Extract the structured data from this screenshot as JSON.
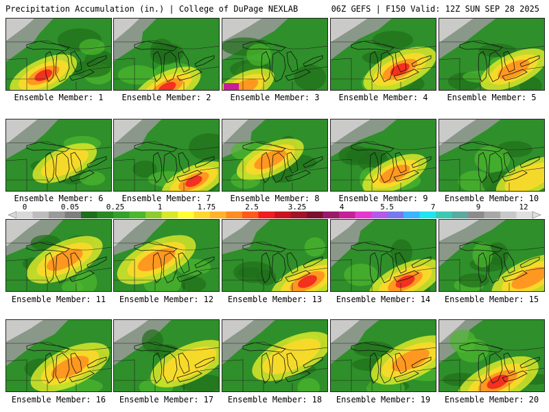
{
  "header": {
    "left": "Precipitation Accumulation (in.) | College of DuPage NEXLAB",
    "right": "06Z GEFS | F150 Valid: 12Z SUN SEP 28 2025"
  },
  "members": [
    {
      "label": "Ensemble Member: 1",
      "hot": [
        0.35,
        0.78,
        0.9
      ],
      "wet": 0.35
    },
    {
      "label": "Ensemble Member: 2",
      "hot": [
        0.5,
        0.95,
        1.0
      ],
      "wet": 0.35
    },
    {
      "label": "Ensemble Member: 3",
      "hot": [
        0.2,
        0.95,
        0.8
      ],
      "wet": 0.25
    },
    {
      "label": "Ensemble Member: 4",
      "hot": [
        0.65,
        0.7,
        0.9
      ],
      "wet": 0.45
    },
    {
      "label": "Ensemble Member: 5",
      "hot": [
        0.7,
        0.7,
        0.8
      ],
      "wet": 0.35
    },
    {
      "label": "Ensemble Member: 6",
      "hot": [
        0.55,
        0.6,
        0.6
      ],
      "wet": 0.3
    },
    {
      "label": "Ensemble Member: 7",
      "hot": [
        0.75,
        0.85,
        0.9
      ],
      "wet": 0.3
    },
    {
      "label": "Ensemble Member: 8",
      "hot": [
        0.45,
        0.55,
        0.8
      ],
      "wet": 0.35
    },
    {
      "label": "Ensemble Member: 9",
      "hot": [
        0.6,
        0.75,
        0.8
      ],
      "wet": 0.3
    },
    {
      "label": "Ensemble Member: 10",
      "hot": [
        0.85,
        0.8,
        0.6
      ],
      "wet": 0.35
    },
    {
      "label": "Ensemble Member: 11",
      "hot": [
        0.55,
        0.55,
        0.8
      ],
      "wet": 0.5
    },
    {
      "label": "Ensemble Member: 12",
      "hot": [
        0.4,
        0.55,
        0.8
      ],
      "wet": 0.55
    },
    {
      "label": "Ensemble Member: 13",
      "hot": [
        0.8,
        0.85,
        0.95
      ],
      "wet": 0.45
    },
    {
      "label": "Ensemble Member: 14",
      "hot": [
        0.7,
        0.85,
        0.9
      ],
      "wet": 0.45
    },
    {
      "label": "Ensemble Member: 15",
      "hot": [
        0.85,
        0.8,
        0.8
      ],
      "wet": 0.5
    },
    {
      "label": "Ensemble Member: 16",
      "hot": [
        0.6,
        0.65,
        0.7
      ],
      "wet": 0.55
    },
    {
      "label": "Ensemble Member: 17",
      "hot": [
        0.7,
        0.6,
        0.6
      ],
      "wet": 0.5
    },
    {
      "label": "Ensemble Member: 18",
      "hot": [
        0.65,
        0.5,
        0.5
      ],
      "wet": 0.55
    },
    {
      "label": "Ensemble Member: 19",
      "hot": [
        0.75,
        0.55,
        0.7
      ],
      "wet": 0.55
    },
    {
      "label": "Ensemble Member: 20",
      "hot": [
        0.55,
        0.85,
        1.0
      ],
      "wet": 0.6
    }
  ],
  "colorbar": {
    "ticks": [
      "0",
      "0.05",
      "0.25",
      "1",
      "1.75",
      "2.5",
      "3.25",
      "4",
      "5.5",
      "7",
      "9",
      "12"
    ],
    "colors": [
      "#d9d9d9",
      "#bdbdbd",
      "#9a9a9a",
      "#7e7e7e",
      "#1f6e1a",
      "#2a8a22",
      "#34a12a",
      "#4cb82e",
      "#8ccc2e",
      "#d8e82a",
      "#ffff33",
      "#ffd92a",
      "#ffb428",
      "#ff8c1e",
      "#ff5a1a",
      "#f01e1e",
      "#c8141e",
      "#a01428",
      "#7a1030",
      "#9a1a6a",
      "#c81e9a",
      "#e836d0",
      "#b45ae8",
      "#7878f0",
      "#3cb4ff",
      "#1ee6f0",
      "#3cc8b4",
      "#5aaaa0",
      "#8c8c8c",
      "#a8a8a8",
      "#c8c8c8",
      "#e0e0e0"
    ]
  }
}
